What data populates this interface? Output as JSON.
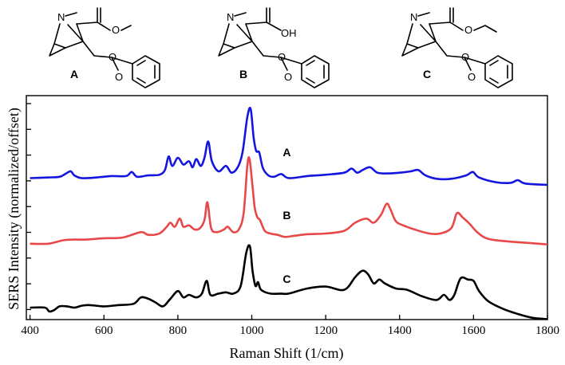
{
  "structures": [
    {
      "label": "A",
      "ester": "O",
      "methyl": "",
      "acid_oh": ""
    },
    {
      "label": "B",
      "ester": "",
      "methyl": "",
      "acid_oh": "OH"
    },
    {
      "label": "C",
      "ester": "O",
      "methyl": "",
      "acid_oh": ""
    }
  ],
  "atoms": {
    "nitrogen": "N",
    "oxygen": "O"
  },
  "chart_data": {
    "type": "line",
    "title": "",
    "xlabel": "Raman Shift (1/cm)",
    "ylabel": "SERS Intensity (normalized/offset)",
    "xlim": [
      390,
      1800
    ],
    "x_ticks": [
      400,
      600,
      800,
      1000,
      1200,
      1400,
      1600,
      1800
    ],
    "y_tick_count": 9,
    "grid": false,
    "series": [
      {
        "name": "A",
        "color": "#1515e0",
        "points": [
          [
            400,
            0.1
          ],
          [
            450,
            0.11
          ],
          [
            480,
            0.12
          ],
          [
            495,
            0.16
          ],
          [
            510,
            0.2
          ],
          [
            520,
            0.14
          ],
          [
            540,
            0.1
          ],
          [
            580,
            0.11
          ],
          [
            620,
            0.13
          ],
          [
            660,
            0.13
          ],
          [
            675,
            0.19
          ],
          [
            690,
            0.12
          ],
          [
            720,
            0.14
          ],
          [
            750,
            0.15
          ],
          [
            765,
            0.22
          ],
          [
            775,
            0.42
          ],
          [
            785,
            0.28
          ],
          [
            800,
            0.4
          ],
          [
            815,
            0.3
          ],
          [
            830,
            0.35
          ],
          [
            840,
            0.26
          ],
          [
            850,
            0.38
          ],
          [
            862,
            0.28
          ],
          [
            872,
            0.4
          ],
          [
            882,
            0.64
          ],
          [
            892,
            0.35
          ],
          [
            910,
            0.2
          ],
          [
            930,
            0.28
          ],
          [
            945,
            0.18
          ],
          [
            962,
            0.26
          ],
          [
            975,
            0.48
          ],
          [
            988,
            1.0
          ],
          [
            997,
            1.12
          ],
          [
            1005,
            0.7
          ],
          [
            1012,
            0.5
          ],
          [
            1020,
            0.48
          ],
          [
            1030,
            0.25
          ],
          [
            1045,
            0.14
          ],
          [
            1060,
            0.12
          ],
          [
            1080,
            0.16
          ],
          [
            1100,
            0.1
          ],
          [
            1150,
            0.13
          ],
          [
            1200,
            0.15
          ],
          [
            1250,
            0.18
          ],
          [
            1270,
            0.24
          ],
          [
            1285,
            0.18
          ],
          [
            1300,
            0.22
          ],
          [
            1320,
            0.26
          ],
          [
            1340,
            0.18
          ],
          [
            1370,
            0.17
          ],
          [
            1400,
            0.18
          ],
          [
            1430,
            0.2
          ],
          [
            1450,
            0.22
          ],
          [
            1470,
            0.14
          ],
          [
            1500,
            0.09
          ],
          [
            1540,
            0.09
          ],
          [
            1580,
            0.14
          ],
          [
            1598,
            0.19
          ],
          [
            1615,
            0.11
          ],
          [
            1660,
            0.04
          ],
          [
            1700,
            0.03
          ],
          [
            1720,
            0.07
          ],
          [
            1740,
            0.02
          ],
          [
            1800,
            0.0
          ]
        ]
      },
      {
        "name": "B",
        "color": "#e84848",
        "points": [
          [
            400,
            0.05
          ],
          [
            450,
            0.05
          ],
          [
            490,
            0.1
          ],
          [
            520,
            0.11
          ],
          [
            550,
            0.11
          ],
          [
            600,
            0.13
          ],
          [
            650,
            0.14
          ],
          [
            700,
            0.22
          ],
          [
            720,
            0.18
          ],
          [
            750,
            0.2
          ],
          [
            770,
            0.3
          ],
          [
            780,
            0.36
          ],
          [
            792,
            0.3
          ],
          [
            805,
            0.42
          ],
          [
            815,
            0.3
          ],
          [
            830,
            0.32
          ],
          [
            845,
            0.26
          ],
          [
            860,
            0.28
          ],
          [
            872,
            0.4
          ],
          [
            880,
            0.66
          ],
          [
            890,
            0.28
          ],
          [
            905,
            0.22
          ],
          [
            925,
            0.26
          ],
          [
            935,
            0.3
          ],
          [
            950,
            0.22
          ],
          [
            965,
            0.26
          ],
          [
            978,
            0.5
          ],
          [
            988,
            1.2
          ],
          [
            994,
            1.3
          ],
          [
            1002,
            0.9
          ],
          [
            1008,
            0.58
          ],
          [
            1015,
            0.44
          ],
          [
            1022,
            0.4
          ],
          [
            1035,
            0.24
          ],
          [
            1050,
            0.2
          ],
          [
            1070,
            0.18
          ],
          [
            1090,
            0.15
          ],
          [
            1120,
            0.17
          ],
          [
            1150,
            0.19
          ],
          [
            1200,
            0.2
          ],
          [
            1250,
            0.24
          ],
          [
            1280,
            0.36
          ],
          [
            1310,
            0.42
          ],
          [
            1330,
            0.36
          ],
          [
            1350,
            0.48
          ],
          [
            1365,
            0.64
          ],
          [
            1375,
            0.56
          ],
          [
            1390,
            0.38
          ],
          [
            1410,
            0.32
          ],
          [
            1440,
            0.26
          ],
          [
            1480,
            0.2
          ],
          [
            1510,
            0.2
          ],
          [
            1540,
            0.28
          ],
          [
            1555,
            0.5
          ],
          [
            1570,
            0.44
          ],
          [
            1590,
            0.34
          ],
          [
            1610,
            0.22
          ],
          [
            1640,
            0.12
          ],
          [
            1700,
            0.08
          ],
          [
            1800,
            0.04
          ]
        ]
      },
      {
        "name": "C",
        "color": "#000000",
        "points": [
          [
            400,
            0.0
          ],
          [
            440,
            0.0
          ],
          [
            452,
            -0.06
          ],
          [
            465,
            -0.04
          ],
          [
            480,
            0.02
          ],
          [
            500,
            0.02
          ],
          [
            520,
            0.0
          ],
          [
            540,
            0.03
          ],
          [
            560,
            0.04
          ],
          [
            600,
            0.02
          ],
          [
            640,
            0.04
          ],
          [
            680,
            0.06
          ],
          [
            700,
            0.16
          ],
          [
            720,
            0.14
          ],
          [
            740,
            0.08
          ],
          [
            760,
            0.02
          ],
          [
            780,
            0.14
          ],
          [
            800,
            0.26
          ],
          [
            815,
            0.16
          ],
          [
            830,
            0.2
          ],
          [
            850,
            0.16
          ],
          [
            865,
            0.22
          ],
          [
            878,
            0.42
          ],
          [
            888,
            0.2
          ],
          [
            910,
            0.22
          ],
          [
            930,
            0.24
          ],
          [
            950,
            0.22
          ],
          [
            970,
            0.34
          ],
          [
            985,
            0.86
          ],
          [
            995,
            0.96
          ],
          [
            1002,
            0.58
          ],
          [
            1010,
            0.34
          ],
          [
            1017,
            0.4
          ],
          [
            1025,
            0.28
          ],
          [
            1050,
            0.22
          ],
          [
            1080,
            0.22
          ],
          [
            1100,
            0.22
          ],
          [
            1150,
            0.3
          ],
          [
            1200,
            0.33
          ],
          [
            1250,
            0.28
          ],
          [
            1280,
            0.48
          ],
          [
            1300,
            0.58
          ],
          [
            1315,
            0.52
          ],
          [
            1330,
            0.38
          ],
          [
            1345,
            0.44
          ],
          [
            1360,
            0.38
          ],
          [
            1390,
            0.3
          ],
          [
            1420,
            0.28
          ],
          [
            1460,
            0.18
          ],
          [
            1500,
            0.12
          ],
          [
            1520,
            0.2
          ],
          [
            1535,
            0.12
          ],
          [
            1548,
            0.2
          ],
          [
            1565,
            0.46
          ],
          [
            1585,
            0.44
          ],
          [
            1600,
            0.42
          ],
          [
            1615,
            0.26
          ],
          [
            1640,
            0.1
          ],
          [
            1680,
            -0.02
          ],
          [
            1720,
            -0.1
          ],
          [
            1760,
            -0.16
          ],
          [
            1800,
            -0.18
          ]
        ]
      }
    ]
  }
}
